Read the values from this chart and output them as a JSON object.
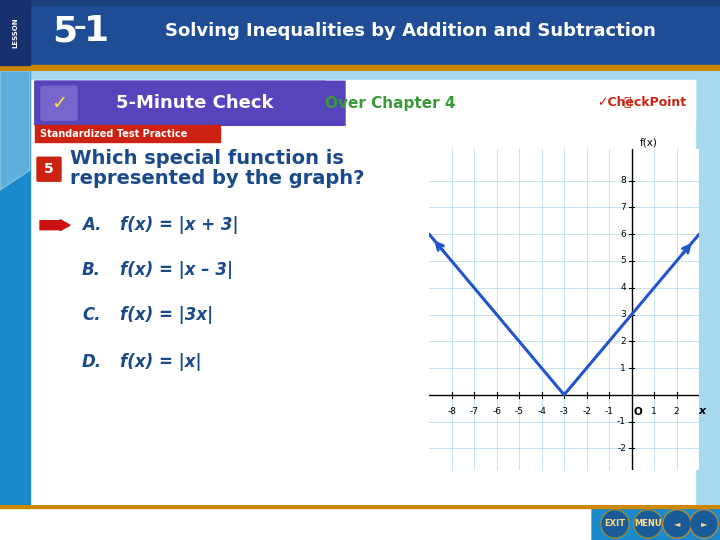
{
  "title_text": "Solving Inequalities by Addition and Subtraction",
  "title_text_color": "#ffffff",
  "five_min_check_text": "5-Minute Check",
  "over_chapter_text": "Over Chapter 4",
  "over_chapter_color": "#3a9a3a",
  "std_test_text": "Standardized Test Practice",
  "question_num": "5",
  "question_line1": "Which special function is",
  "question_line2": "represented by the graph?",
  "question_color": "#1a4a8a",
  "answer_A": "f(x) = |x + 3|",
  "answer_B": "f(x) = |x – 3|",
  "answer_C": "f(x) = |3x|",
  "answer_D": "f(x) = |x|",
  "answer_color": "#1a4a8a",
  "correct_arrow_color": "#cc1111",
  "slide_bg": "#a8d8f0",
  "white_bg": "#ffffff",
  "top_bar_dark": "#1a3f7a",
  "top_bar_mid": "#2255aa",
  "five_min_bg": "#5544aa",
  "five_min_tab_bg": "#3322aa",
  "graph_line_color": "#2255cc",
  "bottom_bar_color": "#1a8acc",
  "bottom_accent": "#cc8800",
  "graph_xticks": [
    -8,
    -7,
    -6,
    -5,
    -4,
    -3,
    -2,
    -1,
    1,
    2
  ],
  "graph_yticks": [
    1,
    2,
    3,
    4,
    5,
    6,
    7,
    8
  ],
  "graph_yticks_neg": [
    -1,
    -2
  ],
  "red_badge_color": "#cc2211",
  "left_bar_color": "#1a8acc"
}
